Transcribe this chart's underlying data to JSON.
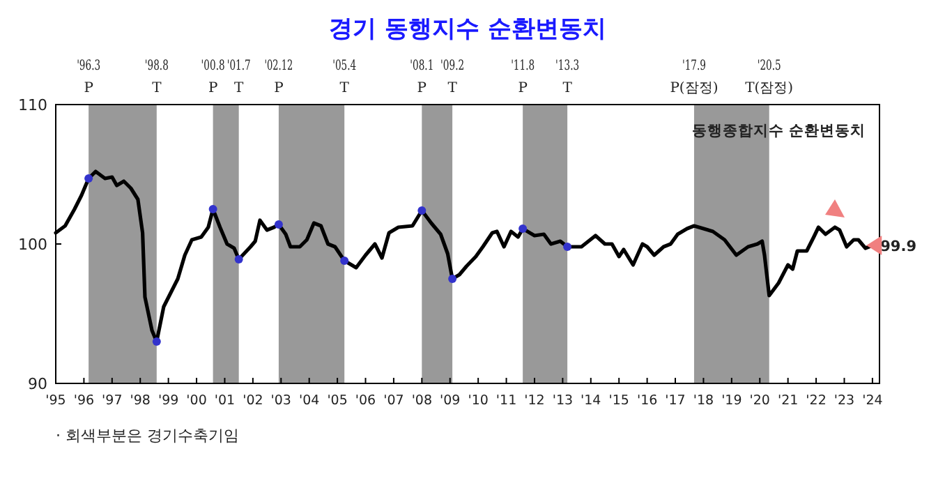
{
  "chart_data": {
    "type": "line",
    "title": "경기 동행지수 순환변동치",
    "x": [
      "1995-01",
      "1995-05",
      "1995-09",
      "1995-12",
      "1996-03",
      "1996-06",
      "1996-10",
      "1997-01",
      "1997-03",
      "1997-06",
      "1997-09",
      "1997-12",
      "1998-02",
      "1998-03",
      "1998-06",
      "1998-08",
      "1998-11",
      "1999-02",
      "1999-05",
      "1999-08",
      "1999-11",
      "2000-03",
      "2000-06",
      "2000-08",
      "2000-11",
      "2001-02",
      "2001-05",
      "2001-07",
      "2001-12",
      "2002-02",
      "2002-04",
      "2002-07",
      "2002-10",
      "2002-12",
      "2003-03",
      "2003-05",
      "2003-09",
      "2003-12",
      "2004-03",
      "2004-06",
      "2004-09",
      "2004-12",
      "2005-04",
      "2005-09",
      "2006-01",
      "2006-05",
      "2006-08",
      "2006-11",
      "2007-03",
      "2007-09",
      "2008-01",
      "2008-05",
      "2008-09",
      "2008-12",
      "2009-02",
      "2009-05",
      "2009-08",
      "2009-12",
      "2010-03",
      "2010-07",
      "2010-09",
      "2010-12",
      "2011-03",
      "2011-06",
      "2011-08",
      "2012-01",
      "2012-05",
      "2012-08",
      "2012-12",
      "2013-03",
      "2013-09",
      "2014-03",
      "2014-07",
      "2014-10",
      "2015-01",
      "2015-03",
      "2015-07",
      "2015-11",
      "2016-01",
      "2016-04",
      "2016-08",
      "2016-11",
      "2017-02",
      "2017-06",
      "2017-09",
      "2018-05",
      "2018-10",
      "2019-03",
      "2019-08",
      "2019-12",
      "2020-02",
      "2020-03",
      "2020-05",
      "2020-09",
      "2021-01",
      "2021-03",
      "2021-05",
      "2021-09",
      "2021-12",
      "2022-02",
      "2022-05",
      "2022-09",
      "2022-11",
      "2023-02",
      "2023-05",
      "2023-07",
      "2023-10",
      "2024-01",
      "2024-02"
    ],
    "series": [
      {
        "name": "동행종합지수 순환변동치",
        "color": "#000000",
        "values": [
          100.8,
          101.3,
          102.5,
          103.5,
          104.7,
          105.2,
          104.7,
          104.8,
          104.2,
          104.5,
          104.0,
          103.2,
          100.8,
          96.2,
          93.8,
          93.0,
          95.5,
          96.5,
          97.5,
          99.2,
          100.3,
          100.5,
          101.2,
          102.5,
          101.2,
          100.0,
          99.7,
          98.9,
          99.8,
          100.2,
          101.7,
          101.0,
          101.2,
          101.4,
          100.7,
          99.8,
          99.8,
          100.3,
          101.5,
          101.3,
          100.0,
          99.8,
          98.8,
          98.3,
          99.2,
          100.0,
          99.0,
          100.8,
          101.2,
          101.3,
          102.4,
          101.5,
          100.7,
          99.3,
          97.5,
          97.8,
          98.4,
          99.1,
          99.8,
          100.8,
          100.9,
          99.8,
          100.9,
          100.5,
          101.1,
          100.6,
          100.7,
          100.0,
          100.2,
          99.8,
          99.8,
          100.6,
          100.0,
          100.0,
          99.1,
          99.6,
          98.5,
          100.0,
          99.8,
          99.2,
          99.8,
          100.0,
          100.7,
          101.1,
          101.3,
          100.9,
          100.3,
          99.2,
          99.8,
          100.0,
          100.2,
          99.2,
          96.3,
          97.2,
          98.5,
          98.2,
          99.5,
          99.5,
          100.5,
          101.2,
          100.7,
          101.2,
          101.0,
          99.8,
          100.3,
          100.3,
          99.7,
          99.9,
          99.9
        ]
      },
      {
        "type": "scatter",
        "marker": "circle",
        "color": "#3333cc",
        "x": [
          "1996-03",
          "1998-08",
          "2000-08",
          "2001-07",
          "2002-12",
          "2005-04",
          "2008-01",
          "2009-02",
          "2011-08",
          "2013-03"
        ],
        "values": [
          104.7,
          93.0,
          102.5,
          98.9,
          101.4,
          98.8,
          102.4,
          97.5,
          101.1,
          99.8
        ]
      }
    ],
    "xlim": [
      "1995-01",
      "2024-04"
    ],
    "xticks": [
      {
        "value": "1995-01",
        "label": "'95"
      },
      {
        "value": "1996-01",
        "label": "'96"
      },
      {
        "value": "1997-01",
        "label": "'97"
      },
      {
        "value": "1998-01",
        "label": "'98"
      },
      {
        "value": "1999-01",
        "label": "'99"
      },
      {
        "value": "2000-01",
        "label": "'00"
      },
      {
        "value": "2001-01",
        "label": "'01"
      },
      {
        "value": "2002-01",
        "label": "'02"
      },
      {
        "value": "2003-01",
        "label": "'03"
      },
      {
        "value": "2004-01",
        "label": "'04"
      },
      {
        "value": "2005-01",
        "label": "'05"
      },
      {
        "value": "2006-01",
        "label": "'06"
      },
      {
        "value": "2007-01",
        "label": "'07"
      },
      {
        "value": "2008-01",
        "label": "'08"
      },
      {
        "value": "2009-01",
        "label": "'09"
      },
      {
        "value": "2010-01",
        "label": "'10"
      },
      {
        "value": "2011-01",
        "label": "'11"
      },
      {
        "value": "2012-01",
        "label": "'12"
      },
      {
        "value": "2013-01",
        "label": "'13"
      },
      {
        "value": "2014-01",
        "label": "'14"
      },
      {
        "value": "2015-01",
        "label": "'15"
      },
      {
        "value": "2016-01",
        "label": "'16"
      },
      {
        "value": "2017-01",
        "label": "'17"
      },
      {
        "value": "2018-01",
        "label": "'18"
      },
      {
        "value": "2019-01",
        "label": "'19"
      },
      {
        "value": "2020-01",
        "label": "'20"
      },
      {
        "value": "2021-01",
        "label": "'21"
      },
      {
        "value": "2022-01",
        "label": "'22"
      },
      {
        "value": "2023-01",
        "label": "'23"
      },
      {
        "value": "2024-01",
        "label": "'24"
      }
    ],
    "ylim": [
      90,
      110
    ],
    "yticks": [
      90,
      100,
      110
    ],
    "grid": false,
    "legend": "top right",
    "line_style": "solid",
    "bands": [
      {
        "axis": "x",
        "from": "1996-03",
        "to": "1998-08",
        "color": "#999999"
      },
      {
        "axis": "x",
        "from": "2000-08",
        "to": "2001-07",
        "color": "#999999"
      },
      {
        "axis": "x",
        "from": "2002-12",
        "to": "2005-04",
        "color": "#999999"
      },
      {
        "axis": "x",
        "from": "2008-01",
        "to": "2009-02",
        "color": "#999999"
      },
      {
        "axis": "x",
        "from": "2011-08",
        "to": "2013-03",
        "color": "#999999"
      },
      {
        "axis": "x",
        "from": "2017-09",
        "to": "2020-05",
        "color": "#999999"
      }
    ],
    "annotations": [
      "'96.3\nP",
      "'98.8\nT",
      "'00.8\nP",
      "'01.7\nT",
      "'02.12\nP",
      "'05.4\nT",
      "'08.1\nP",
      "'09.2\nT",
      "'11.8\nP",
      "'13.3\nT",
      "'17.9\nP(잠정)",
      "'20.5\nT(잠정)",
      {
        "text": "99.9",
        "x": "2024-02",
        "y": 99.9
      },
      "· 회색부분은 경기수축기임"
    ]
  }
}
